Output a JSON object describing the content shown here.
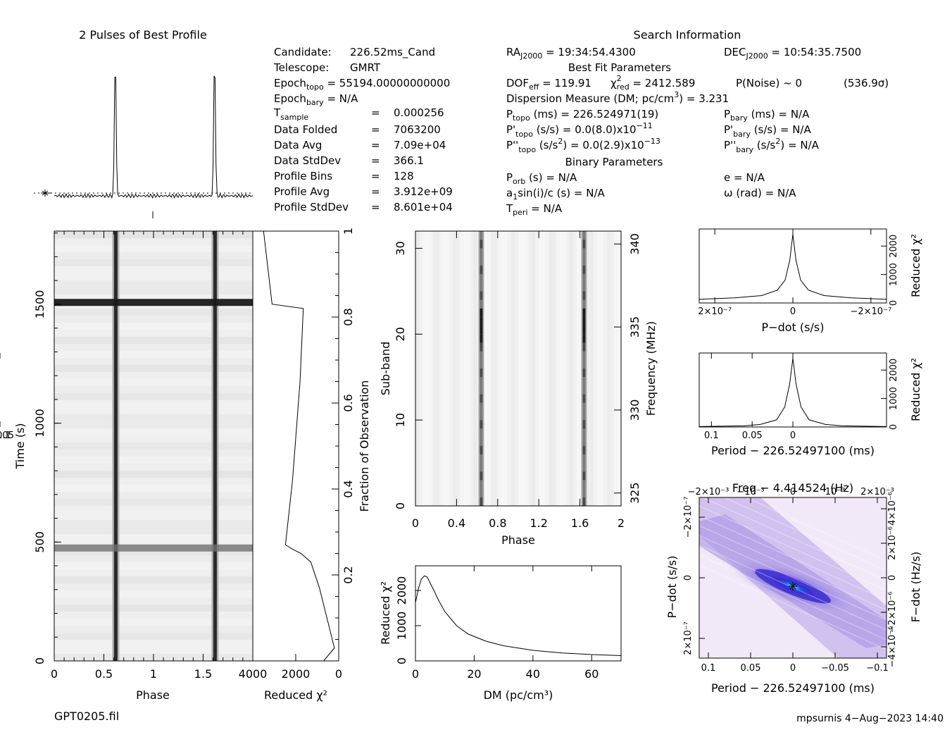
{
  "chart_data": [
    {
      "id": "best-profile",
      "type": "line",
      "title": "2 Pulses of Best Profile",
      "x_range": [
        0,
        2
      ],
      "peaks_at_phase": [
        0.615,
        1.615
      ],
      "peak_relative_height": 1.0,
      "baseline_relative_height": 0.0
    },
    {
      "id": "time-phase",
      "type": "heatmap",
      "xlabel": "Phase",
      "ylabel": "Time (s)",
      "xlim": [
        0,
        2
      ],
      "ylim": [
        0,
        1808
      ],
      "xticks": [
        "0",
        "0.5",
        "1",
        "1.5"
      ],
      "yticks": [
        "0",
        "500",
        "1000",
        "1500"
      ],
      "pulse_phases": [
        0.62,
        1.62
      ],
      "bright_rows_time_s": [
        1508,
        475
      ]
    },
    {
      "id": "chi2-vs-fraction",
      "type": "line",
      "xlabel": "Reduced χ²",
      "ylabel": "Fraction of Observation",
      "xticks": [
        "4000",
        "2000",
        "0"
      ],
      "yticks": [
        "0.2",
        "0.4",
        "0.6",
        "0.8",
        "1"
      ],
      "xlim": [
        4000,
        0
      ],
      "ylim": [
        0,
        1
      ],
      "x": [
        700,
        200,
        500,
        900,
        1300,
        1750,
        2150,
        2480,
        2150,
        1800,
        1650,
        3100,
        3500
      ],
      "y": [
        0.0,
        0.03,
        0.09,
        0.17,
        0.23,
        0.25,
        0.26,
        0.27,
        0.42,
        0.65,
        0.82,
        0.83,
        1.0
      ]
    },
    {
      "id": "subband-phase",
      "type": "heatmap",
      "xlabel": "Phase",
      "ylabel": "Sub-band",
      "right_label": "Frequency (MHz)",
      "xlim": [
        0,
        2
      ],
      "ylim": [
        0,
        32
      ],
      "xticks": [
        "0",
        "0.4",
        "0.8",
        "1.2",
        "1.6",
        "2"
      ],
      "yticks": [
        "0",
        "10",
        "20",
        "30"
      ],
      "right_ticks": [
        "325",
        "330",
        "335",
        "340"
      ],
      "pulse_phases": [
        0.64,
        1.64
      ]
    },
    {
      "id": "dm-curve",
      "type": "line",
      "xlabel": "DM (pc/cm³)",
      "ylabel": "Reduced χ²",
      "xlim": [
        0,
        70
      ],
      "ylim": [
        0,
        2700
      ],
      "xticks": [
        "0",
        "20",
        "40",
        "60"
      ],
      "yticks": [
        "0",
        "1000",
        "2000"
      ],
      "x": [
        0,
        1,
        2,
        3,
        3.2,
        4,
        6,
        8,
        10,
        14,
        18,
        24,
        30,
        40,
        50,
        60,
        70
      ],
      "y": [
        1650,
        2050,
        2320,
        2410,
        2413,
        2380,
        2050,
        1700,
        1400,
        1000,
        760,
        560,
        430,
        300,
        225,
        180,
        150
      ]
    },
    {
      "id": "pdot-curve",
      "type": "line",
      "xlabel": "P−dot (s/s)",
      "ylabel": "Reduced χ²",
      "xlim": [
        2.4e-07,
        -2.4e-07
      ],
      "ylim": [
        0,
        2600
      ],
      "xtick_labels": [
        "2×10⁻⁷",
        "0",
        "−2×10⁻⁷"
      ],
      "yticks": [
        "0",
        "1000",
        "2000"
      ],
      "x": [
        2.4e-07,
        1.5e-07,
        8e-08,
        4e-08,
        2e-08,
        8e-09,
        0,
        -8e-09,
        -2e-08,
        -4e-08,
        -8e-08,
        -1.5e-07,
        -2.4e-07
      ],
      "y": [
        130,
        180,
        260,
        450,
        800,
        1500,
        2413,
        1500,
        800,
        450,
        260,
        180,
        130
      ]
    },
    {
      "id": "period-curve",
      "type": "line",
      "xlabel": "Period − 226.52497100 (ms)",
      "ylabel": "Reduced χ²",
      "xlim": [
        0.115,
        -0.115
      ],
      "ylim": [
        0,
        2600
      ],
      "xticks": [
        "0.1",
        "0.05",
        "0",
        "−0.05",
        "−0.1"
      ],
      "yticks": [
        "0",
        "1000",
        "2000"
      ],
      "x": [
        0.115,
        0.06,
        0.04,
        0.02,
        0.01,
        0.004,
        0,
        -0.004,
        -0.01,
        -0.02,
        -0.04,
        -0.06,
        -0.115
      ],
      "y": [
        15,
        40,
        90,
        250,
        700,
        1500,
        2413,
        1500,
        700,
        250,
        90,
        40,
        15
      ]
    },
    {
      "id": "p-pdot-plane",
      "type": "heatmap",
      "top_label": "Freq − 4.414524 (Hz)",
      "top_ticks": [
        "−2×10⁻³",
        "−10⁻³",
        "0",
        "10⁻³",
        "2×10⁻³"
      ],
      "xlabel": "Period − 226.52497100 (ms)",
      "xticks": [
        "0.1",
        "0.05",
        "0",
        "−0.05",
        "−0.1"
      ],
      "ylabel": "P−dot (s/s)",
      "yticks": [
        "−2×10⁻⁷",
        "0",
        "2×10⁻⁷"
      ],
      "right_label": "F−dot (Hz/s)",
      "right_ticks": [
        "4×10⁻⁶",
        "2×10⁻⁶",
        "0",
        "−2×10⁻⁶",
        "−4×10⁻⁶"
      ],
      "peak": [
        0,
        0
      ]
    }
  ],
  "candidate_info": {
    "candidate": {
      "label": "Candidate:",
      "value": "226.52ms_Cand"
    },
    "telescope": {
      "label": "Telescope:",
      "value": "GMRT"
    },
    "epoch_topo": {
      "base": "Epoch",
      "sub": "topo",
      "rest": " = 55194.00000000000"
    },
    "epoch_bary": {
      "base": "Epoch",
      "sub": "bary",
      "rest": " = N/A"
    },
    "t_sample": {
      "base": "T",
      "sub": "sample",
      "eq": "=",
      "value": "0.000256"
    },
    "rows": [
      {
        "label": "Data Folded",
        "eq": "=",
        "value": "7063200"
      },
      {
        "label": "Data Avg",
        "eq": "=",
        "value": "7.09e+04"
      },
      {
        "label": "Data StdDev",
        "eq": "=",
        "value": "366.1"
      },
      {
        "label": "Profile Bins",
        "eq": "=",
        "value": "128"
      },
      {
        "label": "Profile Avg",
        "eq": "=",
        "value": "3.912e+09"
      },
      {
        "label": "Profile StdDev",
        "eq": "=",
        "value": "8.601e+04"
      }
    ]
  },
  "search_info": {
    "title": "Search Information",
    "ra": {
      "base": "RA",
      "sub": "J2000",
      "rest": " = 19:34:54.4300"
    },
    "dec": {
      "base": "DEC",
      "sub": "J2000",
      "rest": " = 10:54:35.7500"
    },
    "best_fit_title": "Best Fit Parameters",
    "dof": {
      "base": "DOF",
      "sub": "eff",
      "rest": " = 119.91"
    },
    "chi": {
      "sym": "χ",
      "sup": "2",
      "sub": "red",
      "rest": " = 2412.589"
    },
    "pnoise": "P(Noise) ~ 0",
    "sigma": "(536.9σ)",
    "dm": {
      "a": "Dispersion Measure (DM; pc/cm",
      "sup": "3",
      "b": ") = 3.231"
    },
    "ptopo": {
      "base": "P",
      "sub": "topo",
      "rest": " (ms) =  226.524971(19)"
    },
    "pbary": {
      "base": "P",
      "sub": "bary",
      "rest": " (ms) = N/A"
    },
    "pdtopo": {
      "base": "P'",
      "sub": "topo",
      "rest": " (s/s) = 0.0(8.0)x10",
      "sup": "−11"
    },
    "pdbary": {
      "base": "P'",
      "sub": "bary",
      "rest": " (s/s) = N/A"
    },
    "pddtopo": {
      "base": "P''",
      "sub": "topo",
      "rest": " (s/s",
      "sup": "2",
      "rest2": ") = 0.0(2.9)x10",
      "sup2": "−13"
    },
    "pddbary": {
      "base": "P''",
      "sub": "bary",
      "rest": " (s/s",
      "sup": "2",
      "rest2": ") = N/A"
    },
    "binary_title": "Binary Parameters",
    "porb": {
      "base": "P",
      "sub": "orb",
      "rest": " (s) = N/A"
    },
    "e": "e = N/A",
    "a1": {
      "base": "a",
      "sub": "1",
      "rest": "sin(i)/c (s) = N/A"
    },
    "omega": "ω (rad) = N/A",
    "tperi": {
      "base": "T",
      "sub": "peri",
      "rest": " = N/A"
    }
  },
  "footer": {
    "filename": "GPT0205.fil",
    "user_date": "mpsurnis   4−Aug−2023 14:40"
  },
  "colors": {
    "ink": "#000000",
    "gray": "#555555",
    "heat_dark": "#1a1a1a",
    "plane_blue": "#2a1fc0",
    "plane_cyan": "#40f0f0",
    "plane_light": "#efe6f7"
  }
}
